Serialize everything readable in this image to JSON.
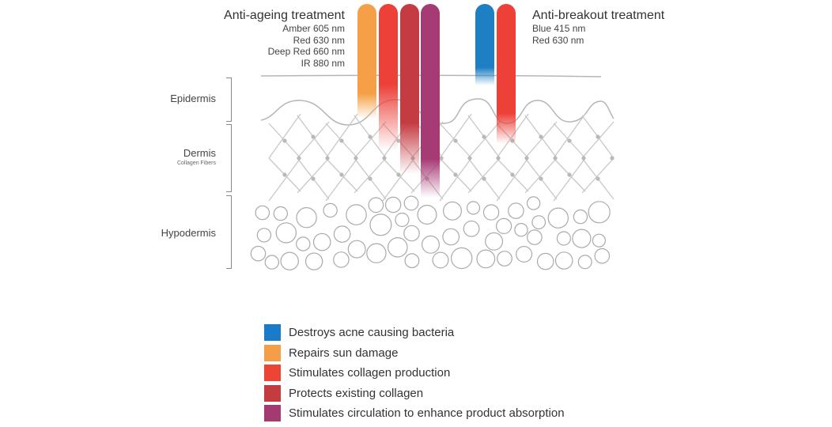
{
  "anti_ageing": {
    "title": "Anti-ageing treatment",
    "wavelengths": [
      "Amber 605 nm",
      "Red 630 nm",
      "Deep Red 660 nm",
      "IR 880 nm"
    ]
  },
  "anti_breakout": {
    "title": "Anti-breakout treatment",
    "wavelengths": [
      "Blue 415 nm",
      "Red 630 nm"
    ]
  },
  "layers": {
    "epidermis": "Epidermis",
    "dermis": "Dermis",
    "dermis_sub": "Collagen Fibers",
    "hypodermis": "Hypodermis"
  },
  "colors": {
    "blue": "#1f7fc4",
    "amber": "#f5a046",
    "red": "#ec4039",
    "deep_red": "#c43c42",
    "ir": "#a63a74",
    "skin_line": "#b5b5b5"
  },
  "legend": [
    {
      "label": "Destroys acne causing bacteria",
      "color": "#1a7cc9"
    },
    {
      "label": "Repairs sun damage",
      "color": "#f59e4a"
    },
    {
      "label": "Stimulates collagen production",
      "color": "#ed4436"
    },
    {
      "label": "Protects existing collagen",
      "color": "#c43c3f"
    },
    {
      "label": "Stimulates circulation to enhance product absorption",
      "color": "#a53a72"
    }
  ]
}
